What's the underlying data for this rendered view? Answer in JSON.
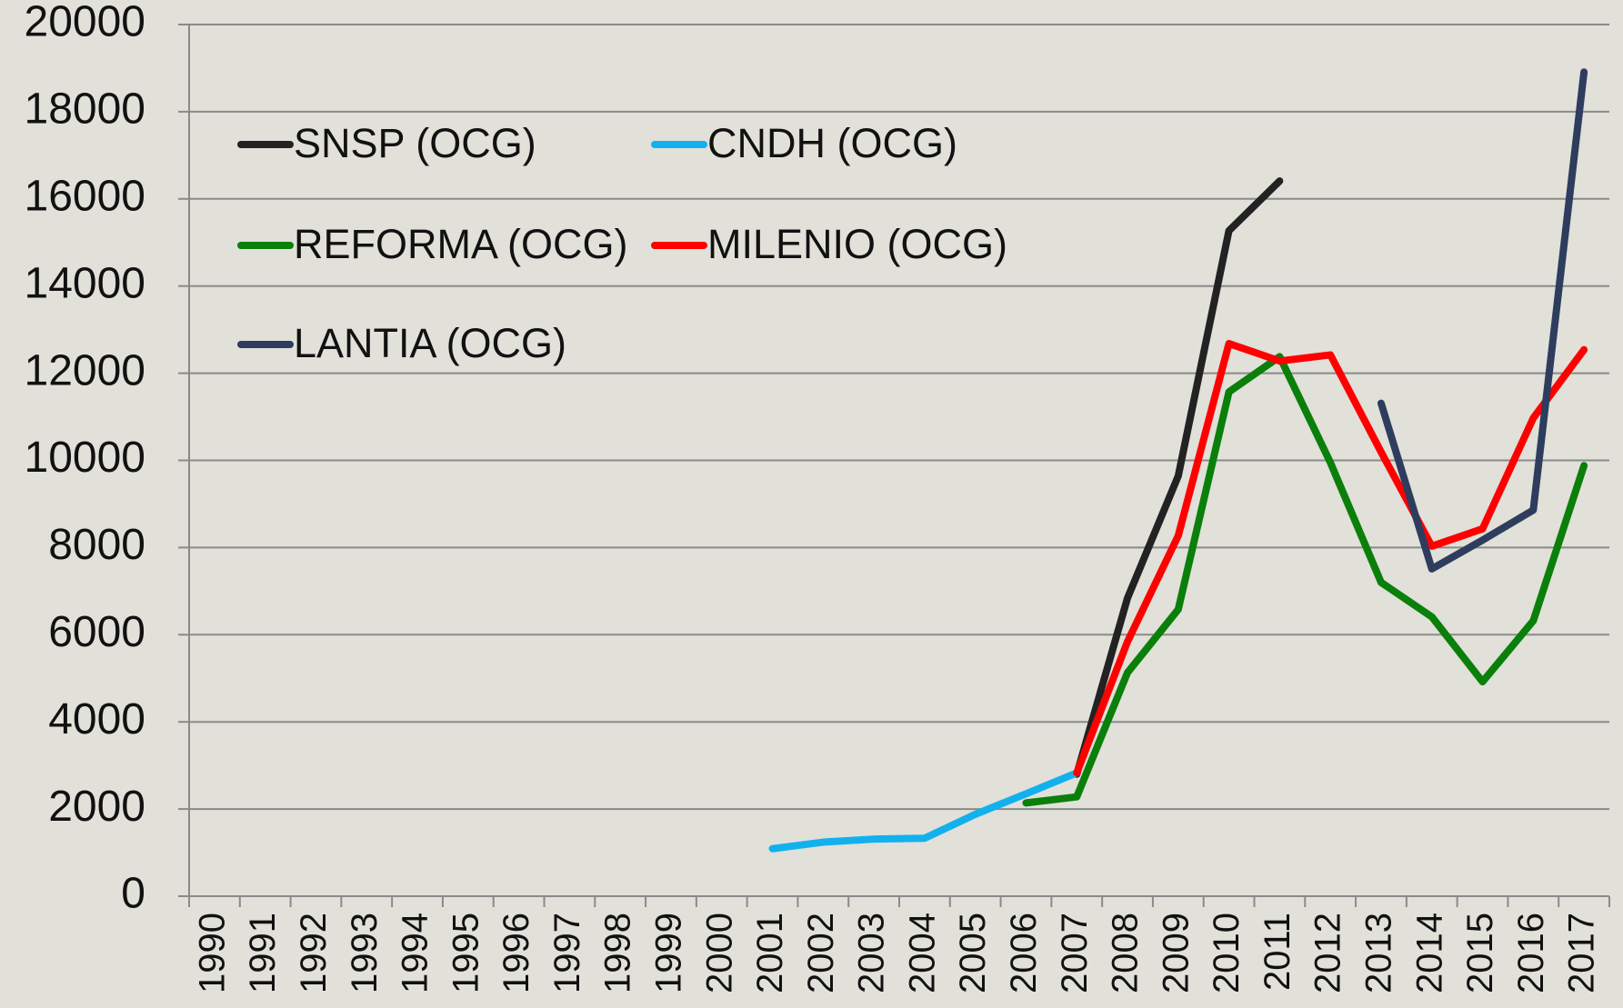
{
  "chart_data": {
    "type": "line",
    "categories": [
      "1990",
      "1991",
      "1992",
      "1993",
      "1994",
      "1995",
      "1996",
      "1997",
      "1998",
      "1999",
      "2000",
      "2001",
      "2002",
      "2003",
      "2004",
      "2005",
      "2006",
      "2007",
      "2008",
      "2009",
      "2010",
      "2011",
      "2012",
      "2013",
      "2014",
      "2015",
      "2016",
      "2017"
    ],
    "series": [
      {
        "name": "SNSP (OCG)",
        "color": "#222222",
        "values": [
          null,
          null,
          null,
          null,
          null,
          null,
          null,
          null,
          null,
          null,
          null,
          null,
          null,
          null,
          null,
          null,
          null,
          2800,
          6840,
          9640,
          15270,
          16410,
          null,
          null,
          null,
          null,
          null,
          null
        ]
      },
      {
        "name": "CNDH (OCG)",
        "color": "#12b1ee",
        "values": [
          null,
          null,
          null,
          null,
          null,
          null,
          null,
          null,
          null,
          null,
          null,
          1090,
          1240,
          1310,
          1330,
          1880,
          2350,
          2830,
          null,
          null,
          null,
          null,
          null,
          null,
          null,
          null,
          null,
          null
        ]
      },
      {
        "name": "REFORMA (OCG)",
        "color": "#0a7f0a",
        "values": [
          null,
          null,
          null,
          null,
          null,
          null,
          null,
          null,
          null,
          null,
          null,
          null,
          null,
          null,
          null,
          null,
          2140,
          2280,
          5130,
          6580,
          11570,
          12380,
          9950,
          7200,
          6410,
          4920,
          6320,
          9880
        ]
      },
      {
        "name": "MILENIO (OCG)",
        "color": "#ff0000",
        "values": [
          null,
          null,
          null,
          null,
          null,
          null,
          null,
          null,
          null,
          null,
          null,
          null,
          null,
          null,
          null,
          null,
          null,
          2830,
          5840,
          8270,
          12680,
          12280,
          12420,
          10190,
          8030,
          8430,
          10970,
          12540
        ]
      },
      {
        "name": "LANTIA (OCG)",
        "color": "#2e3d5e",
        "values": [
          null,
          null,
          null,
          null,
          null,
          null,
          null,
          null,
          null,
          null,
          null,
          null,
          null,
          null,
          null,
          null,
          null,
          null,
          null,
          null,
          null,
          null,
          null,
          11310,
          7510,
          8170,
          8860,
          18910
        ]
      }
    ],
    "ylim": [
      0,
      20000
    ],
    "yticks": [
      0,
      2000,
      4000,
      6000,
      8000,
      10000,
      12000,
      14000,
      16000,
      18000,
      20000
    ],
    "grid": true
  }
}
